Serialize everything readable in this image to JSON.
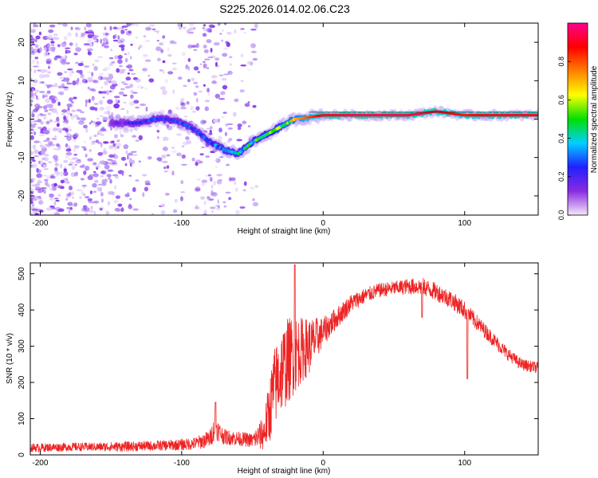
{
  "title": "S225.2026.014.02.06.C23",
  "colors": {
    "snr_line": "#ee2222",
    "spectrogram_speckle": "#8a3cf0",
    "spectrogram_core": "#ff2020"
  },
  "chart_data": [
    {
      "id": "spectrogram",
      "type": "heatmap",
      "xlabel": "Height of straight line (km)",
      "ylabel": "Frequency (Hz)",
      "xlim": [
        -207,
        152
      ],
      "ylim": [
        -25,
        25
      ],
      "xticks": [
        -200,
        -100,
        0,
        100
      ],
      "yticks": [
        -20,
        -10,
        0,
        10,
        20
      ],
      "colorbar": {
        "label": "Normalized spectral amplitude",
        "range": [
          0,
          1
        ],
        "ticks": [
          "0.0",
          "0.2",
          "0.4",
          "0.6",
          "0.8"
        ],
        "tick_values": [
          0.0,
          0.2,
          0.4,
          0.6,
          0.8
        ],
        "stops": [
          "#f4e8f8",
          "#8a2be2",
          "#2020ff",
          "#00d0ff",
          "#00e000",
          "#ffff00",
          "#ff8000",
          "#ff0000",
          "#ff0090"
        ]
      },
      "ridge": {
        "x": [
          -150,
          -140,
          -130,
          -120,
          -110,
          -100,
          -90,
          -80,
          -70,
          -60,
          -50,
          -40,
          -30,
          -20,
          -10,
          0,
          10,
          20,
          40,
          60,
          80,
          100,
          120,
          152
        ],
        "freq": [
          -1,
          -1,
          -1,
          0,
          0,
          -1,
          -3,
          -6,
          -8,
          -9,
          -6,
          -4,
          -2,
          0,
          0.5,
          1,
          1,
          1,
          1,
          1,
          2,
          1,
          1,
          1
        ],
        "amplitude": [
          0.15,
          0.2,
          0.25,
          0.3,
          0.3,
          0.3,
          0.3,
          0.35,
          0.4,
          0.45,
          0.5,
          0.55,
          0.6,
          0.7,
          0.8,
          0.9,
          0.9,
          0.95,
          0.95,
          0.95,
          0.9,
          0.85,
          0.9,
          0.9
        ]
      }
    },
    {
      "id": "snr",
      "type": "line",
      "xlabel": "Height of straight line (km)",
      "ylabel": "SNR (10 * v/v)",
      "xlim": [
        -207,
        152
      ],
      "ylim": [
        0,
        530
      ],
      "xticks": [
        -200,
        -100,
        0,
        100
      ],
      "yticks": [
        0,
        100,
        200,
        300,
        400,
        500
      ],
      "series": [
        {
          "name": "SNR",
          "x": [
            -207,
            -200,
            -180,
            -160,
            -140,
            -120,
            -100,
            -90,
            -80,
            -76,
            -75,
            -70,
            -60,
            -50,
            -42,
            -38,
            -35,
            -30,
            -25,
            -20,
            -15,
            -10,
            -5,
            0,
            10,
            20,
            30,
            40,
            50,
            60,
            70,
            80,
            90,
            100,
            110,
            120,
            130,
            140,
            152
          ],
          "values": [
            20,
            20,
            22,
            22,
            23,
            25,
            28,
            32,
            45,
            80,
            70,
            50,
            45,
            40,
            60,
            120,
            180,
            230,
            260,
            280,
            290,
            300,
            320,
            340,
            380,
            420,
            440,
            455,
            460,
            465,
            465,
            450,
            430,
            400,
            360,
            320,
            280,
            250,
            240
          ],
          "spread": [
            12,
            12,
            12,
            12,
            14,
            14,
            16,
            18,
            25,
            35,
            30,
            22,
            20,
            20,
            50,
            90,
            110,
            120,
            120,
            110,
            90,
            80,
            60,
            40,
            30,
            25,
            22,
            20,
            20,
            22,
            25,
            25,
            25,
            25,
            22,
            20,
            18,
            16,
            16
          ],
          "annotations": [
            {
              "x": -20,
              "value": 525
            },
            {
              "x": 70,
              "value": 380
            },
            {
              "x": 102,
              "value": 210
            },
            {
              "x": -76,
              "value": 145
            }
          ]
        }
      ]
    }
  ]
}
